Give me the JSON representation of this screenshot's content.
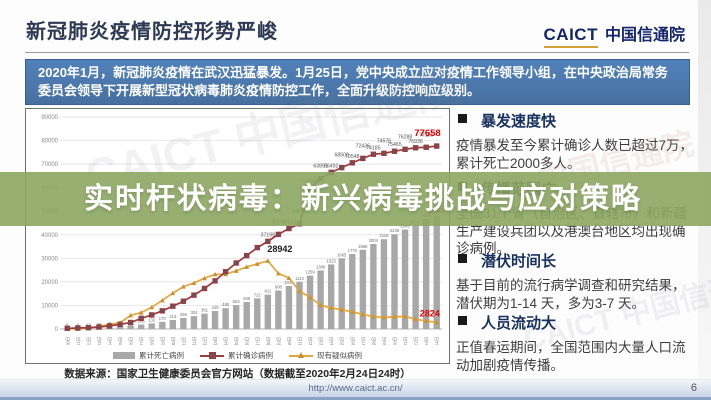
{
  "header": {
    "title": "新冠肺炎疫情防控形势严峻",
    "logo_caict": "CAICT",
    "logo_cn": "中国信通院"
  },
  "intro_box": {
    "text": "2020年1月，新冠肺炎疫情在武汉迅猛暴发。1月25日，党中央成立应对疫情工作领导小组，在中央政治局常务委员会领导下开展新型冠状病毒肺炎疫情防控工作，全面升级防控响应级别。"
  },
  "overlay_banner": {
    "text": "实时杆状病毒：新兴病毒挑战与应对策略",
    "color": "#8da663"
  },
  "bullets": [
    {
      "heading": "暴发速度快",
      "body": "疫情暴发至今累计确诊人数已超过7万，累计死亡2000多人。"
    },
    {
      "heading": "传播范围广",
      "body": "全国31个省（自治区、直辖市）和新疆生产建设兵团以及港澳台地区均出现确诊病例。"
    },
    {
      "heading": "潜伏时间长",
      "body": "基于目前的流行病学调查和研究结果，潜伏期为1-14 天，多为3-7 天。"
    },
    {
      "heading": "人员流动大",
      "body": "正值春运期间，全国范围内大量人口流动加剧疫情传播。"
    }
  ],
  "chart_data": {
    "type": "line",
    "title": "",
    "xlabel": "",
    "ylabel": "",
    "grid": true,
    "legend_position": "bottom",
    "ylim_primary": [
      0,
      90000
    ],
    "ylim_secondary": [
      0,
      5000
    ],
    "yticks": [
      0,
      10000,
      20000,
      30000,
      40000,
      50000,
      60000,
      70000,
      80000,
      90000
    ],
    "categories": [
      "1月20日",
      "1月21日",
      "1月22日",
      "1月23日",
      "1月24日",
      "1月25日",
      "1月26日",
      "1月27日",
      "1月28日",
      "1月29日",
      "1月30日",
      "1月31日",
      "2月1日",
      "2月2日",
      "2月3日",
      "2月4日",
      "2月5日",
      "2月6日",
      "2月7日",
      "2月8日",
      "2月9日",
      "2月10日",
      "2月11日",
      "2月12日",
      "2月13日",
      "2月14日",
      "2月15日",
      "2月16日",
      "2月17日",
      "2月18日",
      "2月19日",
      "2月20日",
      "2月21日",
      "2月22日",
      "2月23日",
      "2月24日"
    ],
    "series": [
      {
        "name": "累计死亡病例",
        "render": "bar",
        "axis": "secondary",
        "color": "#a8a8a8",
        "values": [
          6,
          9,
          17,
          25,
          41,
          56,
          80,
          106,
          132,
          170,
          213,
          259,
          304,
          361,
          425,
          490,
          563,
          636,
          722,
          811,
          908,
          1016,
          1113,
          1259,
          1380,
          1523,
          1665,
          1770,
          1868,
          2004,
          2118,
          2236,
          2345,
          2442,
          2592,
          2663
        ]
      },
      {
        "name": "累计确诊病例",
        "render": "line",
        "marker": "square",
        "axis": "primary",
        "color": "#9e3b3b",
        "values": [
          291,
          440,
          571,
          830,
          1287,
          1975,
          2744,
          4515,
          5974,
          7711,
          9692,
          11791,
          14380,
          17205,
          20438,
          24324,
          28018,
          31161,
          34546,
          37198,
          40171,
          42638,
          44653,
          59804,
          63851,
          66492,
          68500,
          70548,
          72436,
          74185,
          74576,
          75465,
          76288,
          76936,
          77150,
          77658
        ]
      },
      {
        "name": "现有疑似病例",
        "render": "line",
        "marker": "triangle",
        "axis": "primary",
        "color": "#e2a83e",
        "values": [
          54,
          37,
          393,
          1072,
          1965,
          2684,
          5794,
          6973,
          9239,
          12167,
          15238,
          17988,
          19544,
          21558,
          23214,
          23260,
          24702,
          26359,
          27657,
          28942,
          23589,
          21675,
          16067,
          13435,
          10109,
          8969,
          8228,
          7264,
          6242,
          5248,
          4922,
          5206,
          5365,
          4148,
          3434,
          2824
        ]
      }
    ],
    "callouts": {
      "confirmed_final": "77658",
      "deaths_final": "2663",
      "suspected_peak": "28942",
      "suspected_final": "2824"
    }
  },
  "source_note": "数据来源：国家卫生健康委员会官方网站（数据截至2020年2月24日24时）",
  "footer": {
    "url": "http://www.caict.ac.cn/",
    "page_number": "6"
  },
  "watermark": "CAICT 中国信通院"
}
